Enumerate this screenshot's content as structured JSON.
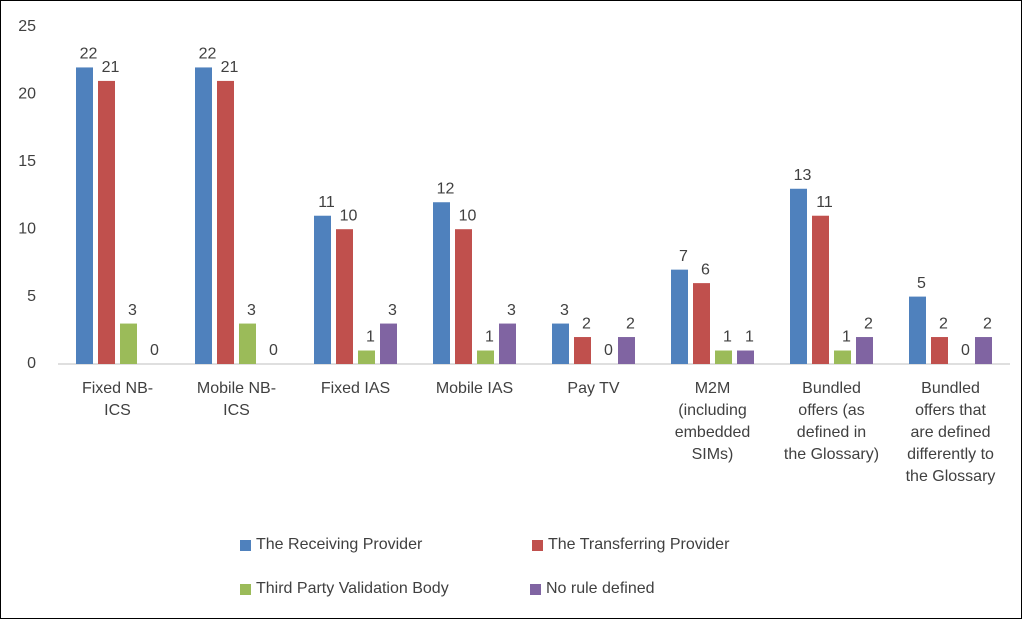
{
  "chart_data": {
    "type": "bar",
    "categories": [
      "Fixed NB-ICS",
      "Mobile NB-ICS",
      "Fixed IAS",
      "Mobile IAS",
      "Pay TV",
      "M2M (including embedded SIMs)",
      "Bundled offers (as defined in the Glossary)",
      "Bundled offers that are defined differently to the Glossary"
    ],
    "series": [
      {
        "name": "The Receiving Provider",
        "color": "#4f81bd",
        "values": [
          22,
          22,
          11,
          12,
          3,
          7,
          13,
          5
        ]
      },
      {
        "name": "The Transferring Provider",
        "color": "#c0504d",
        "values": [
          21,
          21,
          10,
          10,
          2,
          6,
          11,
          2
        ]
      },
      {
        "name": "Third Party Validation Body",
        "color": "#9bbb59",
        "values": [
          3,
          3,
          1,
          1,
          0,
          1,
          1,
          0
        ]
      },
      {
        "name": "No rule defined",
        "color": "#8064a2",
        "values": [
          0,
          0,
          3,
          3,
          2,
          1,
          2,
          2
        ]
      }
    ],
    "ylim": [
      0,
      25
    ],
    "yticks": [
      0,
      5,
      10,
      15,
      20,
      25
    ],
    "grid": false,
    "legend": "bottom"
  }
}
